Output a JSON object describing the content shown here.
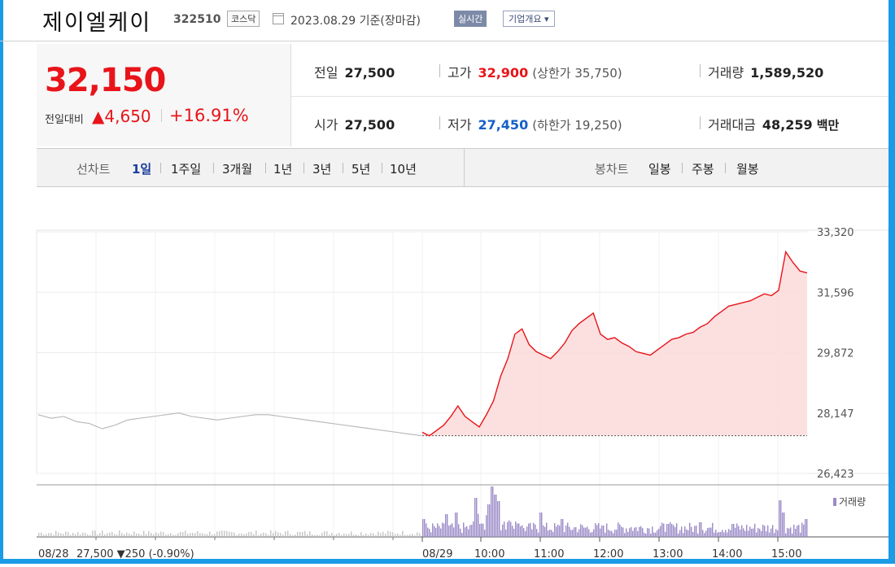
{
  "header": {
    "stock_name": "제이엘케이",
    "stock_code": "322510",
    "market": "코스닥",
    "date_text": "2023.08.29 기준(장마감)",
    "realtime_label": "실시간",
    "overview_label": "기업개요 ▾"
  },
  "price": {
    "current": "32,150",
    "change_label": "전일대비",
    "change_amount": "▲4,650",
    "change_percent": "+16.91%",
    "up_color": "#e8141a"
  },
  "stats": {
    "prev_close": {
      "label": "전일",
      "value": "27,500"
    },
    "open": {
      "label": "시가",
      "value": "27,500"
    },
    "high": {
      "label": "고가",
      "value": "32,900",
      "sub": "(상한가 35,750)"
    },
    "low": {
      "label": "저가",
      "value": "27,450",
      "sub": "(하한가 19,250)"
    },
    "volume": {
      "label": "거래량",
      "value": "1,589,520"
    },
    "trade_value": {
      "label": "거래대금",
      "value": "48,259",
      "unit": "백만"
    }
  },
  "period_bar": {
    "line_label": "선차트",
    "periods": [
      "1일",
      "1주일",
      "3개월",
      "1년",
      "3년",
      "5년",
      "10년"
    ],
    "active": "1일",
    "candle_label": "봉차트",
    "candles": [
      "일봉",
      "주봉",
      "월봉"
    ]
  },
  "chart_data": {
    "type": "line",
    "y_ticks": [
      "33,320",
      "31,596",
      "29,872",
      "28,147",
      "26,423"
    ],
    "ylim": [
      26423,
      33320
    ],
    "x_ticks": [
      "08/29",
      "10:00",
      "11:00",
      "12:00",
      "13:00",
      "14:00",
      "15:00"
    ],
    "prev_day_label": "08/28",
    "prev_day_summary": "27,500 ▼250 (-0.90%)",
    "prev_close": 27500,
    "prev_day_series": [
      28100,
      28000,
      28050,
      27900,
      27850,
      27700,
      27800,
      27950,
      28000,
      28050,
      28100,
      28150,
      28050,
      28000,
      27950,
      28000,
      28050,
      28100,
      28100,
      28050,
      28000,
      27950,
      27900,
      27850,
      27800,
      27750,
      27700,
      27650,
      27600,
      27550,
      27500
    ],
    "today_series": [
      27600,
      27500,
      27650,
      27800,
      28050,
      28350,
      28050,
      27900,
      27750,
      28100,
      28500,
      29200,
      29700,
      30400,
      30550,
      30100,
      29900,
      29800,
      29700,
      29900,
      30150,
      30500,
      30700,
      30850,
      31000,
      30400,
      30250,
      30300,
      30150,
      30050,
      29900,
      29850,
      29800,
      29950,
      30100,
      30250,
      30300,
      30400,
      30450,
      30600,
      30700,
      30900,
      31050,
      31200,
      31250,
      31300,
      31350,
      31450,
      31550,
      31500,
      31650,
      32750,
      32450,
      32200,
      32150
    ],
    "volume_label": "거래량",
    "up_color": "#e8141a",
    "fill_color": "#fbdada",
    "prev_line_color": "#bbbbbb",
    "volume_color": "#9b8ac8"
  }
}
